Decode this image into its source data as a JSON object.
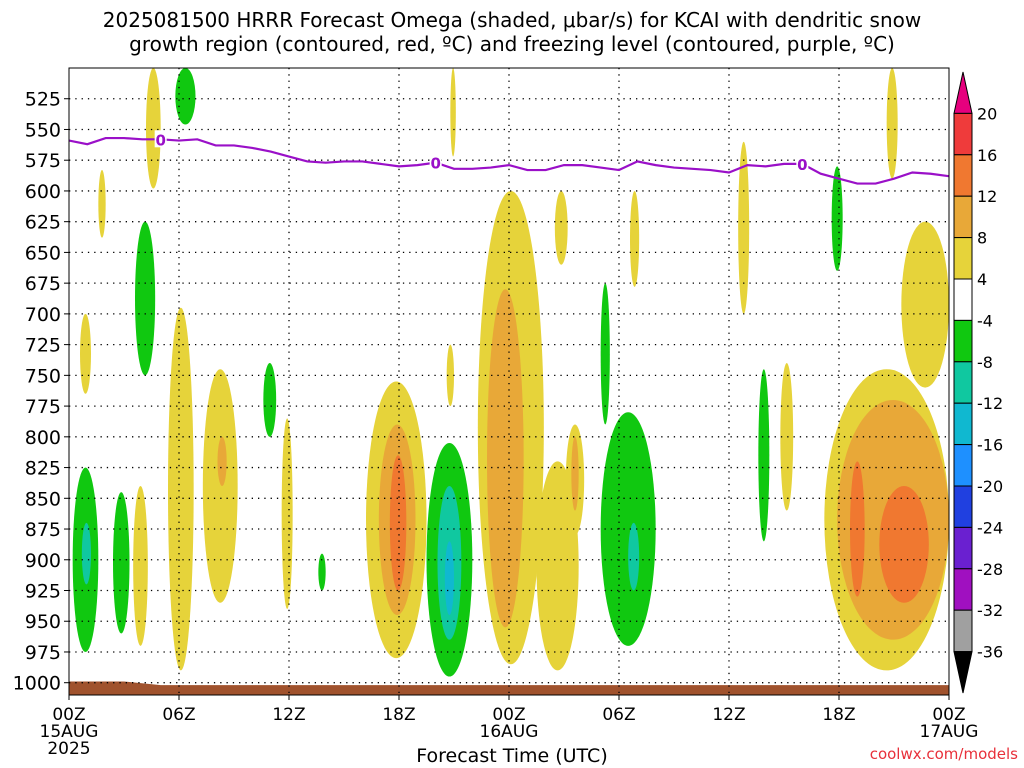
{
  "header": {
    "title_line1": "2025081500 HRRR Forecast Omega (shaded, μbar/s) for KCAI with dendritic snow",
    "title_line2": "growth region (contoured, red, ºC) and freezing level (contoured, purple, ºC)"
  },
  "footer": {
    "xlabel": "Forecast Time (UTC)",
    "credit": "coolwx.com/models"
  },
  "chart_data": {
    "type": "heatmap",
    "x_unit": "hours from 2025081500 UTC",
    "xlim": [
      0,
      48
    ],
    "ylim": [
      1010,
      500
    ],
    "y_reversed": true,
    "ytick_labels": [
      "525",
      "550",
      "575",
      "600",
      "625",
      "650",
      "675",
      "700",
      "725",
      "750",
      "775",
      "800",
      "825",
      "850",
      "875",
      "900",
      "925",
      "950",
      "975",
      "1000"
    ],
    "xticks": [
      {
        "x": 0,
        "label": "00Z",
        "date": "15AUG",
        "year": "2025"
      },
      {
        "x": 6,
        "label": "06Z"
      },
      {
        "x": 12,
        "label": "12Z"
      },
      {
        "x": 18,
        "label": "18Z"
      },
      {
        "x": 24,
        "label": "00Z",
        "date": "16AUG"
      },
      {
        "x": 30,
        "label": "06Z"
      },
      {
        "x": 36,
        "label": "12Z"
      },
      {
        "x": 42,
        "label": "18Z"
      },
      {
        "x": 48,
        "label": "00Z",
        "date": "17AUG"
      }
    ],
    "grid": true,
    "colorbar": {
      "labels": [
        "20",
        "16",
        "12",
        "8",
        "4",
        "-4",
        "-8",
        "-12",
        "-16",
        "-20",
        "-24",
        "-28",
        "-32",
        "-36"
      ],
      "bands": [
        {
          "from": 20,
          "to": 24,
          "color": "#e6007e"
        },
        {
          "from": 16,
          "to": 20,
          "color": "#ef3b3b"
        },
        {
          "from": 12,
          "to": 16,
          "color": "#f07830"
        },
        {
          "from": 8,
          "to": 12,
          "color": "#e8a838"
        },
        {
          "from": 4,
          "to": 8,
          "color": "#e6d33a"
        },
        {
          "from": -4,
          "to": 4,
          "color": "#ffffff"
        },
        {
          "from": -8,
          "to": -4,
          "color": "#10c810"
        },
        {
          "from": -12,
          "to": -8,
          "color": "#10c8a0"
        },
        {
          "from": -16,
          "to": -12,
          "color": "#10b8d0"
        },
        {
          "from": -20,
          "to": -16,
          "color": "#1e90ff"
        },
        {
          "from": -24,
          "to": -20,
          "color": "#2040e0"
        },
        {
          "from": -28,
          "to": -24,
          "color": "#6a20d0"
        },
        {
          "from": -32,
          "to": -28,
          "color": "#a010c0"
        },
        {
          "from": -36,
          "to": -32,
          "color": "#a0a0a0"
        },
        {
          "from": -40,
          "to": -36,
          "color": "#000000"
        }
      ]
    },
    "freezing_level": {
      "label": "0",
      "color": "#9a10c8",
      "hours": [
        0,
        1,
        2,
        3,
        4,
        5,
        6,
        7,
        8,
        9,
        10,
        11,
        12,
        13,
        14,
        15,
        16,
        17,
        18,
        19,
        20,
        21,
        22,
        23,
        24,
        25,
        26,
        27,
        28,
        29,
        30,
        31,
        32,
        33,
        34,
        35,
        36,
        37,
        38,
        39,
        40,
        41,
        42,
        43,
        44,
        45,
        46,
        47,
        48
      ],
      "pressure": [
        559,
        562,
        557,
        557,
        558,
        558,
        559,
        558,
        563,
        563,
        565,
        568,
        572,
        576,
        577,
        576,
        576,
        578,
        580,
        579,
        577,
        582,
        582,
        581,
        579,
        583,
        583,
        579,
        579,
        581,
        583,
        576,
        579,
        581,
        582,
        583,
        585,
        579,
        580,
        578,
        578,
        586,
        590,
        594,
        594,
        590,
        585,
        586,
        588
      ],
      "label_hours": [
        5,
        20,
        40
      ]
    },
    "omega_features": [
      {
        "v": 6,
        "x0": 4.2,
        "x1": 5.0,
        "p0": 500,
        "p1": 598
      },
      {
        "v": -6,
        "x0": 5.8,
        "x1": 6.9,
        "p0": 500,
        "p1": 546
      },
      {
        "v": 6,
        "x0": 1.6,
        "x1": 2.0,
        "p0": 583,
        "p1": 638
      },
      {
        "v": 6,
        "x0": 20.8,
        "x1": 21.1,
        "p0": 500,
        "p1": 572
      },
      {
        "v": 6,
        "x0": 44.6,
        "x1": 45.2,
        "p0": 500,
        "p1": 590
      },
      {
        "v": -6,
        "x0": 3.6,
        "x1": 4.7,
        "p0": 625,
        "p1": 750
      },
      {
        "v": 6,
        "x0": 26.5,
        "x1": 27.2,
        "p0": 600,
        "p1": 660
      },
      {
        "v": 6,
        "x0": 36.5,
        "x1": 37.1,
        "p0": 560,
        "p1": 700
      },
      {
        "v": -6,
        "x0": 41.6,
        "x1": 42.2,
        "p0": 580,
        "p1": 665
      },
      {
        "v": 6,
        "x0": 30.6,
        "x1": 31.1,
        "p0": 600,
        "p1": 678
      },
      {
        "v": 6,
        "x0": 0.6,
        "x1": 1.2,
        "p0": 700,
        "p1": 765
      },
      {
        "v": 6,
        "x0": 20.6,
        "x1": 21.0,
        "p0": 725,
        "p1": 775
      },
      {
        "v": -6,
        "x0": 29.0,
        "x1": 29.5,
        "p0": 675,
        "p1": 790
      },
      {
        "v": -6,
        "x0": 10.6,
        "x1": 11.3,
        "p0": 740,
        "p1": 800
      },
      {
        "v": 6,
        "x0": 11.6,
        "x1": 12.2,
        "p0": 785,
        "p1": 940
      },
      {
        "v": 6,
        "x0": 38.8,
        "x1": 39.5,
        "p0": 740,
        "p1": 860
      },
      {
        "v": -6,
        "x0": 37.6,
        "x1": 38.2,
        "p0": 745,
        "p1": 885
      },
      {
        "v": -6,
        "x0": 0.2,
        "x1": 1.6,
        "p0": 825,
        "p1": 975
      },
      {
        "v": -10,
        "x0": 0.7,
        "x1": 1.2,
        "p0": 870,
        "p1": 920
      },
      {
        "v": -6,
        "x0": 2.4,
        "x1": 3.3,
        "p0": 845,
        "p1": 960
      },
      {
        "v": 6,
        "x0": 3.5,
        "x1": 4.3,
        "p0": 840,
        "p1": 970
      },
      {
        "v": 6,
        "x0": 5.4,
        "x1": 6.8,
        "p0": 695,
        "p1": 990
      },
      {
        "v": 6,
        "x0": 7.3,
        "x1": 9.2,
        "p0": 745,
        "p1": 935
      },
      {
        "v": 10,
        "x0": 8.1,
        "x1": 8.6,
        "p0": 800,
        "p1": 840
      },
      {
        "v": -6,
        "x0": 13.6,
        "x1": 14.0,
        "p0": 895,
        "p1": 925
      },
      {
        "v": 6,
        "x0": 16.2,
        "x1": 19.5,
        "p0": 755,
        "p1": 980
      },
      {
        "v": 10,
        "x0": 16.9,
        "x1": 18.9,
        "p0": 790,
        "p1": 945
      },
      {
        "v": 14,
        "x0": 17.5,
        "x1": 18.4,
        "p0": 815,
        "p1": 925
      },
      {
        "v": -6,
        "x0": 19.5,
        "x1": 22.0,
        "p0": 805,
        "p1": 995
      },
      {
        "v": -10,
        "x0": 20.1,
        "x1": 21.4,
        "p0": 840,
        "p1": 965
      },
      {
        "v": -14,
        "x0": 20.5,
        "x1": 21.0,
        "p0": 885,
        "p1": 945
      },
      {
        "v": 6,
        "x0": 22.3,
        "x1": 25.9,
        "p0": 600,
        "p1": 985
      },
      {
        "v": 10,
        "x0": 22.8,
        "x1": 24.8,
        "p0": 680,
        "p1": 955
      },
      {
        "v": 6,
        "x0": 25.5,
        "x1": 27.8,
        "p0": 820,
        "p1": 990
      },
      {
        "v": 6,
        "x0": 27.1,
        "x1": 28.1,
        "p0": 790,
        "p1": 880
      },
      {
        "v": 10,
        "x0": 27.4,
        "x1": 27.8,
        "p0": 800,
        "p1": 860
      },
      {
        "v": -6,
        "x0": 29.0,
        "x1": 32.0,
        "p0": 780,
        "p1": 970
      },
      {
        "v": -10,
        "x0": 30.5,
        "x1": 31.1,
        "p0": 870,
        "p1": 925
      },
      {
        "v": 6,
        "x0": 41.2,
        "x1": 48.0,
        "p0": 745,
        "p1": 990
      },
      {
        "v": 10,
        "x0": 41.9,
        "x1": 48.0,
        "p0": 770,
        "p1": 965
      },
      {
        "v": 14,
        "x0": 42.6,
        "x1": 43.4,
        "p0": 820,
        "p1": 930
      },
      {
        "v": 14,
        "x0": 44.2,
        "x1": 46.9,
        "p0": 840,
        "p1": 935
      },
      {
        "v": 6,
        "x0": 45.4,
        "x1": 48.0,
        "p0": 625,
        "p1": 760
      }
    ],
    "ground": {
      "color": "#a0522d",
      "pressure_at_start": 999,
      "pressure": 1002
    }
  }
}
